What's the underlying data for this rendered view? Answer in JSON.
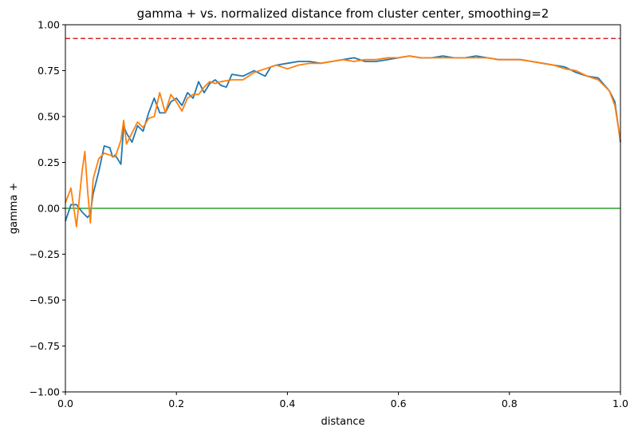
{
  "chart_data": {
    "type": "line",
    "title": "gamma + vs. normalized distance from cluster center, smoothing=2",
    "xlabel": "distance",
    "ylabel": "gamma +",
    "xlim": [
      0,
      1
    ],
    "ylim": [
      -1,
      1
    ],
    "xticks": [
      "0.0",
      "0.2",
      "0.4",
      "0.6",
      "0.8",
      "1.0"
    ],
    "yticks": [
      "−1.00",
      "−0.75",
      "−0.50",
      "−0.25",
      "0.00",
      "0.25",
      "0.50",
      "0.75",
      "1.00"
    ],
    "grid": false,
    "colors": {
      "series_a": "#1f77b4",
      "series_b": "#ff7f0e",
      "reference": "#d62728",
      "zero": "#2ca02c"
    },
    "reference_lines": [
      {
        "y": 0.925,
        "style": "dashed",
        "color": "#d62728"
      },
      {
        "y": 0.0,
        "style": "solid",
        "color": "#2ca02c"
      }
    ],
    "series": [
      {
        "x": [
          0.0,
          0.01,
          0.02,
          0.03,
          0.04,
          0.045,
          0.05,
          0.06,
          0.07,
          0.08,
          0.085,
          0.09,
          0.1,
          0.105,
          0.11,
          0.12,
          0.13,
          0.14,
          0.15,
          0.16,
          0.17,
          0.18,
          0.19,
          0.2,
          0.21,
          0.22,
          0.23,
          0.24,
          0.25,
          0.26,
          0.27,
          0.28,
          0.29,
          0.3,
          0.32,
          0.34,
          0.36,
          0.37,
          0.38,
          0.4,
          0.42,
          0.44,
          0.46,
          0.48,
          0.5,
          0.52,
          0.54,
          0.56,
          0.58,
          0.6,
          0.62,
          0.64,
          0.66,
          0.68,
          0.7,
          0.72,
          0.74,
          0.76,
          0.78,
          0.8,
          0.82,
          0.84,
          0.86,
          0.88,
          0.9,
          0.92,
          0.94,
          0.96,
          0.98,
          0.99,
          1.0
        ],
        "y": [
          -0.07,
          0.02,
          0.02,
          -0.02,
          -0.05,
          -0.03,
          0.08,
          0.2,
          0.34,
          0.33,
          0.28,
          0.29,
          0.24,
          0.45,
          0.41,
          0.36,
          0.45,
          0.42,
          0.52,
          0.6,
          0.52,
          0.52,
          0.58,
          0.6,
          0.56,
          0.63,
          0.6,
          0.69,
          0.63,
          0.68,
          0.7,
          0.67,
          0.66,
          0.73,
          0.72,
          0.75,
          0.72,
          0.77,
          0.78,
          0.79,
          0.8,
          0.8,
          0.79,
          0.8,
          0.81,
          0.82,
          0.8,
          0.8,
          0.81,
          0.82,
          0.83,
          0.82,
          0.82,
          0.83,
          0.82,
          0.82,
          0.83,
          0.82,
          0.81,
          0.81,
          0.81,
          0.8,
          0.79,
          0.78,
          0.77,
          0.74,
          0.72,
          0.71,
          0.64,
          0.58,
          0.36
        ]
      },
      {
        "x": [
          0.0,
          0.01,
          0.02,
          0.03,
          0.035,
          0.04,
          0.045,
          0.05,
          0.06,
          0.07,
          0.08,
          0.09,
          0.1,
          0.105,
          0.11,
          0.12,
          0.13,
          0.14,
          0.15,
          0.16,
          0.17,
          0.18,
          0.19,
          0.2,
          0.21,
          0.22,
          0.23,
          0.24,
          0.25,
          0.26,
          0.27,
          0.28,
          0.3,
          0.32,
          0.34,
          0.36,
          0.38,
          0.4,
          0.42,
          0.44,
          0.46,
          0.48,
          0.5,
          0.52,
          0.54,
          0.56,
          0.58,
          0.6,
          0.62,
          0.64,
          0.66,
          0.68,
          0.7,
          0.72,
          0.74,
          0.76,
          0.78,
          0.8,
          0.82,
          0.84,
          0.86,
          0.88,
          0.9,
          0.92,
          0.94,
          0.96,
          0.98,
          0.99,
          1.0
        ],
        "y": [
          0.03,
          0.11,
          -0.1,
          0.2,
          0.31,
          0.1,
          -0.08,
          0.16,
          0.27,
          0.3,
          0.29,
          0.28,
          0.37,
          0.48,
          0.35,
          0.41,
          0.47,
          0.44,
          0.49,
          0.5,
          0.63,
          0.52,
          0.62,
          0.58,
          0.53,
          0.6,
          0.62,
          0.62,
          0.66,
          0.69,
          0.68,
          0.69,
          0.7,
          0.7,
          0.74,
          0.76,
          0.78,
          0.76,
          0.78,
          0.79,
          0.79,
          0.8,
          0.81,
          0.8,
          0.81,
          0.81,
          0.82,
          0.82,
          0.83,
          0.82,
          0.82,
          0.82,
          0.82,
          0.82,
          0.82,
          0.82,
          0.81,
          0.81,
          0.81,
          0.8,
          0.79,
          0.78,
          0.76,
          0.75,
          0.72,
          0.7,
          0.64,
          0.56,
          0.37
        ]
      }
    ]
  }
}
